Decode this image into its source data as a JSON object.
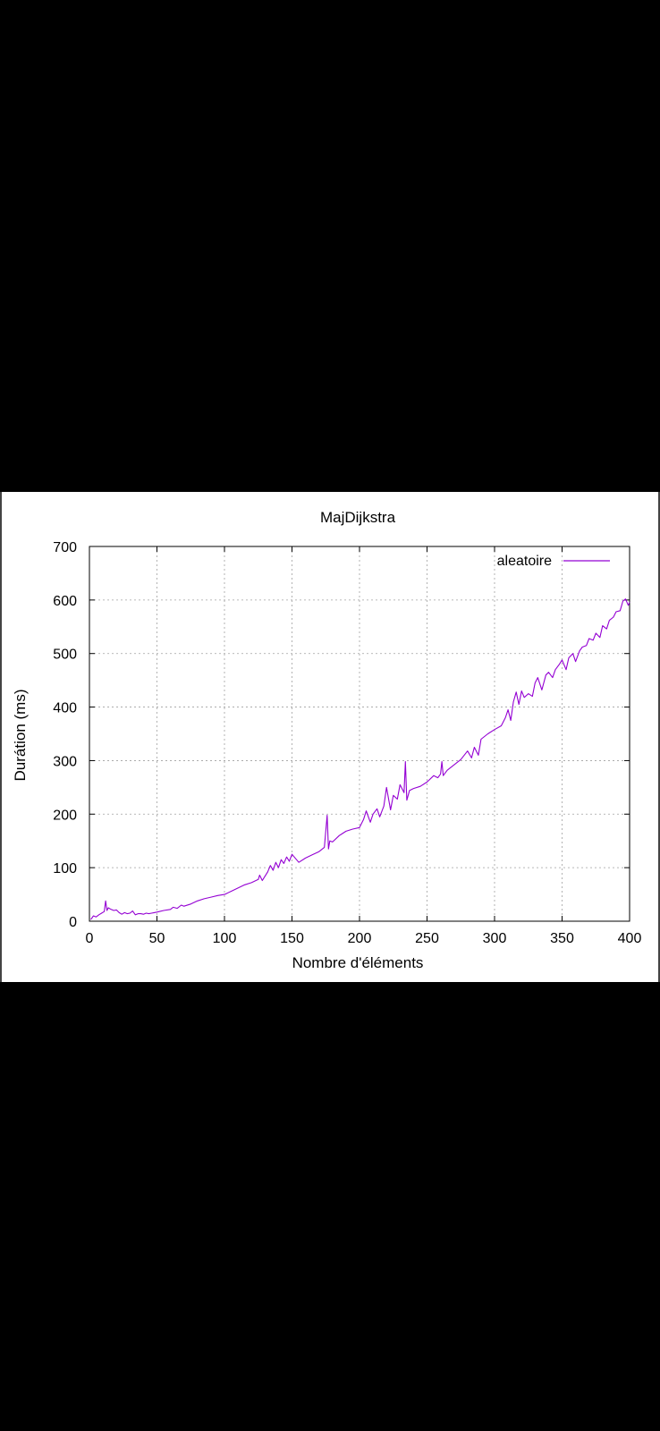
{
  "colors": {
    "background": "#000000",
    "plot_bg": "#ffffff",
    "series": "#9400d3",
    "grid": "#a0a0a0"
  },
  "chart_data": {
    "type": "line",
    "title": "MajDijkstra",
    "xlabel": "Nombre d'éléments",
    "ylabel": "Durátion (ms)",
    "xlim": [
      0,
      400
    ],
    "ylim": [
      0,
      700
    ],
    "xticks": [
      0,
      50,
      100,
      150,
      200,
      250,
      300,
      350,
      400
    ],
    "yticks": [
      0,
      100,
      200,
      300,
      400,
      500,
      600,
      700
    ],
    "grid": true,
    "legend_position": "top-right",
    "series": [
      {
        "name": "aleatoire",
        "color": "#9400d3",
        "x": [
          1,
          3,
          5,
          7,
          9,
          11,
          12,
          13,
          14,
          16,
          18,
          20,
          22,
          24,
          26,
          28,
          30,
          32,
          34,
          36,
          38,
          40,
          42,
          44,
          46,
          48,
          50,
          55,
          60,
          62,
          65,
          68,
          70,
          75,
          80,
          85,
          90,
          95,
          100,
          105,
          110,
          115,
          120,
          125,
          126,
          128,
          130,
          132,
          134,
          136,
          138,
          140,
          142,
          144,
          146,
          148,
          150,
          155,
          160,
          165,
          170,
          174,
          176,
          177,
          178,
          180,
          185,
          190,
          195,
          200,
          203,
          205,
          208,
          210,
          213,
          215,
          218,
          220,
          223,
          225,
          228,
          230,
          233,
          234,
          235,
          237,
          240,
          245,
          250,
          255,
          258,
          260,
          261,
          262,
          265,
          270,
          275,
          280,
          283,
          285,
          288,
          290,
          295,
          300,
          305,
          308,
          310,
          312,
          314,
          316,
          318,
          320,
          322,
          325,
          328,
          330,
          332,
          335,
          338,
          340,
          343,
          345,
          348,
          350,
          353,
          355,
          358,
          360,
          363,
          365,
          368,
          370,
          373,
          375,
          378,
          380,
          383,
          385,
          388,
          390,
          393,
          395,
          397,
          399,
          400
        ],
        "y": [
          3,
          10,
          8,
          12,
          15,
          18,
          38,
          20,
          25,
          22,
          20,
          21,
          16,
          13,
          16,
          14,
          15,
          19,
          12,
          14,
          14,
          13,
          15,
          14,
          15,
          16,
          17,
          20,
          22,
          26,
          24,
          30,
          28,
          32,
          38,
          42,
          45,
          48,
          50,
          56,
          62,
          68,
          72,
          78,
          86,
          76,
          84,
          92,
          104,
          95,
          110,
          100,
          115,
          108,
          120,
          112,
          125,
          110,
          118,
          124,
          130,
          138,
          198,
          135,
          150,
          148,
          160,
          168,
          172,
          175,
          190,
          206,
          185,
          200,
          210,
          195,
          215,
          250,
          208,
          235,
          228,
          255,
          240,
          298,
          226,
          244,
          248,
          252,
          260,
          272,
          268,
          275,
          298,
          272,
          282,
          292,
          302,
          318,
          305,
          325,
          310,
          340,
          350,
          358,
          365,
          380,
          395,
          375,
          410,
          428,
          405,
          430,
          418,
          425,
          420,
          445,
          455,
          432,
          460,
          465,
          455,
          470,
          480,
          488,
          470,
          492,
          500,
          485,
          505,
          512,
          515,
          528,
          525,
          538,
          530,
          552,
          546,
          562,
          568,
          578,
          580,
          598,
          602,
          590,
          596
        ]
      }
    ]
  }
}
